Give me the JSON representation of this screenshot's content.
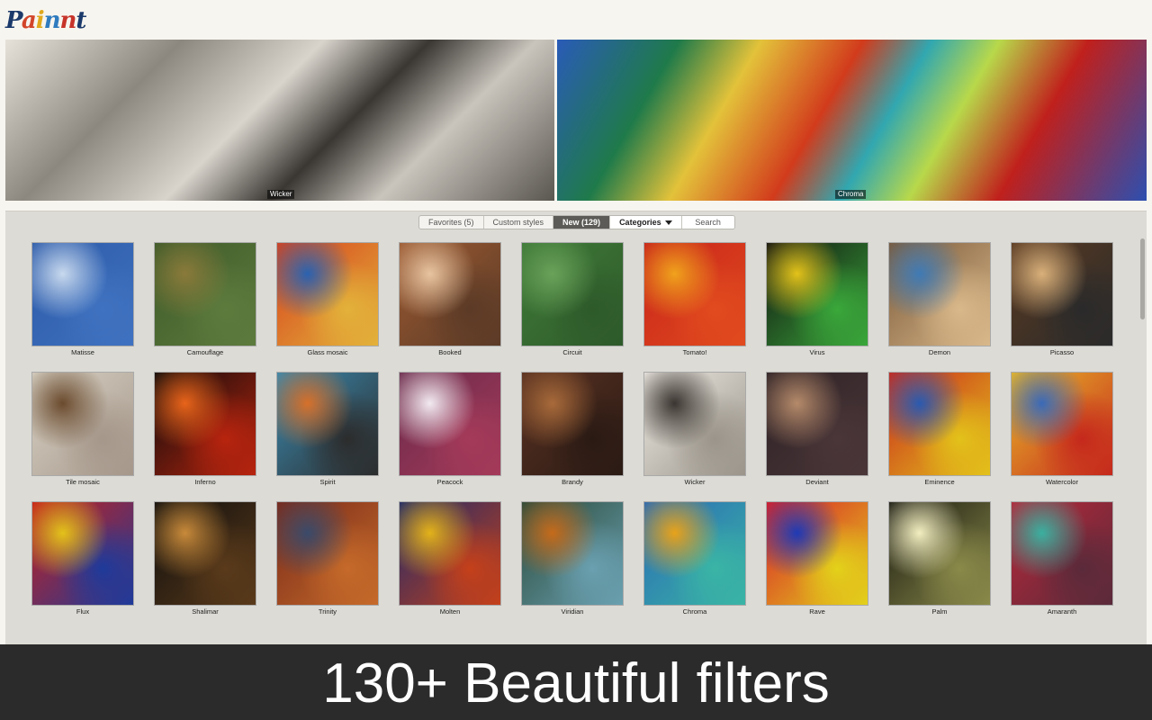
{
  "logo": {
    "text": "Painnt",
    "colors": [
      "#1b3a6b",
      "#d2452a",
      "#e0a91c",
      "#2f7bbf",
      "#c7342a",
      "#1b3a6b"
    ]
  },
  "hero": {
    "left_caption": "Wicker",
    "right_caption": "Chroma"
  },
  "tabs": {
    "favorites": "Favorites (5)",
    "custom": "Custom styles",
    "new": "New (129)",
    "categories": "Categories",
    "search": "Search"
  },
  "filters": [
    {
      "label": "Matisse",
      "colors": [
        "#2c5aa8",
        "#c8d9ee",
        "#3f72c0"
      ]
    },
    {
      "label": "Camouflage",
      "colors": [
        "#3e5a2a",
        "#8a7a3a",
        "#5d7b3d"
      ]
    },
    {
      "label": "Glass mosaic",
      "colors": [
        "#d6421e",
        "#2a62b0",
        "#e3b23a"
      ]
    },
    {
      "label": "Booked",
      "colors": [
        "#9b5a32",
        "#e8c4a0",
        "#5b3a26"
      ]
    },
    {
      "label": "Circuit",
      "colors": [
        "#3f7a38",
        "#6aa25a",
        "#2e5a2a"
      ]
    },
    {
      "label": "Tomato!",
      "colors": [
        "#c7231b",
        "#f0a21c",
        "#e14b1e"
      ]
    },
    {
      "label": "Virus",
      "colors": [
        "#111111",
        "#e3c21a",
        "#3aa83a"
      ]
    },
    {
      "label": "Demon",
      "colors": [
        "#7a5a3a",
        "#3f7ab5",
        "#d9b88a"
      ]
    },
    {
      "label": "Picasso",
      "colors": [
        "#5a3a22",
        "#d9b07a",
        "#2a2a2a"
      ]
    },
    {
      "label": "Tile mosaic",
      "colors": [
        "#d9d3c6",
        "#6b4b2e",
        "#a5978a"
      ]
    },
    {
      "label": "Inferno",
      "colors": [
        "#0c0c0c",
        "#e8641a",
        "#b8240e"
      ]
    },
    {
      "label": "Spirit",
      "colors": [
        "#3a8ab0",
        "#d6702a",
        "#2c2c2c"
      ]
    },
    {
      "label": "Peacock",
      "colors": [
        "#6a2a4a",
        "#f2eaf0",
        "#a53a5a"
      ]
    },
    {
      "label": "Brandy",
      "colors": [
        "#5a3222",
        "#a86a3a",
        "#2a1a14"
      ]
    },
    {
      "label": "Wicker",
      "colors": [
        "#eeeae3",
        "#3a3530",
        "#9a948a"
      ]
    },
    {
      "label": "Deviant",
      "colors": [
        "#2e2226",
        "#b58a6a",
        "#4a3638"
      ]
    },
    {
      "label": "Eminence",
      "colors": [
        "#c92a1e",
        "#2a5ab0",
        "#e3c21a"
      ]
    },
    {
      "label": "Watercolor",
      "colors": [
        "#e8b82a",
        "#3a6ab8",
        "#c5281c"
      ]
    },
    {
      "label": "Flux",
      "colors": [
        "#c8201a",
        "#e3c21a",
        "#1e3a9a"
      ]
    },
    {
      "label": "Shalimar",
      "colors": [
        "#0e0e0e",
        "#c88a3a",
        "#5a3a1a"
      ]
    },
    {
      "label": "Trinity",
      "colors": [
        "#7a2a1a",
        "#3a4a6a",
        "#c56a2a"
      ]
    },
    {
      "label": "Molten",
      "colors": [
        "#1e2a6a",
        "#e3b21a",
        "#c5401a"
      ]
    },
    {
      "label": "Viridian",
      "colors": [
        "#2a4a3a",
        "#c56a1a",
        "#6aa0b0"
      ]
    },
    {
      "label": "Chroma",
      "colors": [
        "#2a6ab5",
        "#e8a21a",
        "#3ab5a5"
      ]
    },
    {
      "label": "Rave",
      "colors": [
        "#d81e2a",
        "#1e3ab5",
        "#e3d21a"
      ]
    },
    {
      "label": "Palm",
      "colors": [
        "#1a1a12",
        "#f2eec0",
        "#8a8a4a"
      ]
    },
    {
      "label": "Amaranth",
      "colors": [
        "#b8283a",
        "#3ab0a0",
        "#5a2a3a"
      ]
    }
  ],
  "banner": {
    "text": "130+ Beautiful filters"
  }
}
